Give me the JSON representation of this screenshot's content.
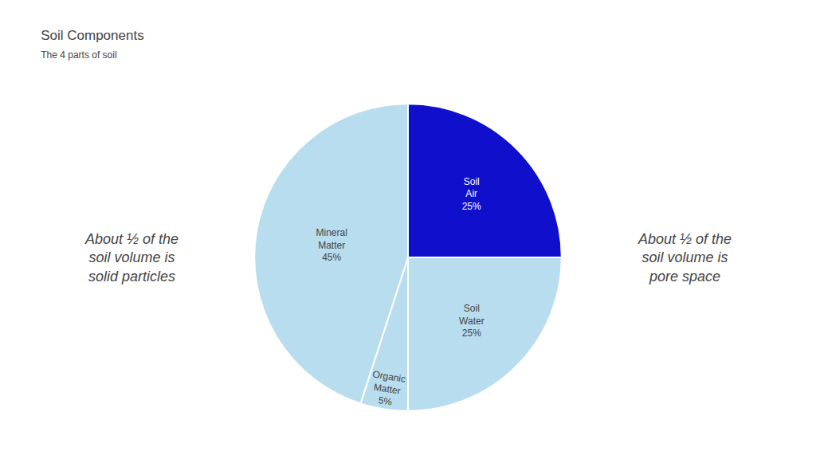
{
  "chart_data": {
    "type": "pie",
    "title": "Soil Components",
    "subtitle": "The 4 parts of soil",
    "values": [
      25,
      25,
      5,
      45
    ],
    "value_labels": [
      "Soil\nAir\n25%",
      "Soil\nWater\n25%",
      "Organic\nMatter\n5%",
      "Mineral\nMatter\n45%"
    ],
    "colors": [
      "#1010CC",
      "#B8DDEF",
      "#B8DDEF",
      "#B8DDEF"
    ],
    "data_labels": true,
    "annotations": [
      "About ½ of the\nsoil volume is\nsolid particles",
      "About ½ of the\nsoil volume is\npore space"
    ]
  }
}
